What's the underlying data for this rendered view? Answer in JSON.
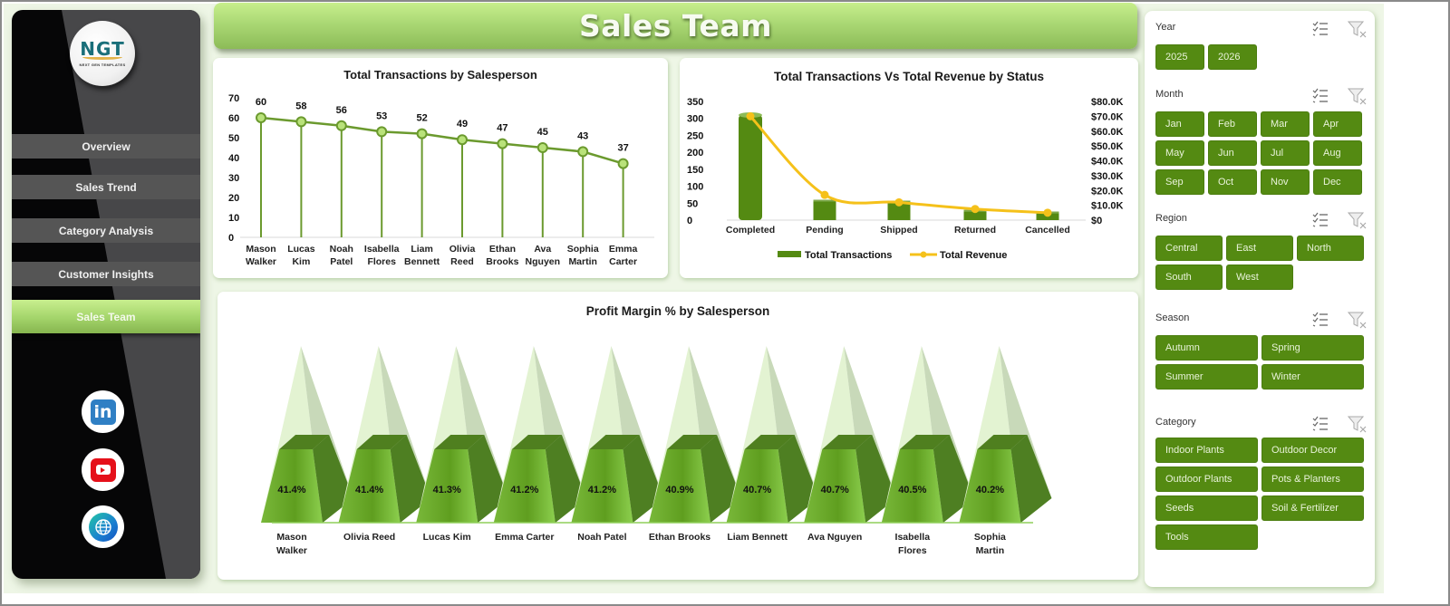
{
  "window": {
    "title": "Sales Team"
  },
  "sidebar": {
    "logo": {
      "text": "NGT",
      "subtitle": "NEXT GEN TEMPLATES"
    },
    "nav": [
      {
        "label": "Overview",
        "active": false
      },
      {
        "label": "Sales Trend",
        "active": false
      },
      {
        "label": "Category Analysis",
        "active": false
      },
      {
        "label": "Customer Insights",
        "active": false
      },
      {
        "label": "Sales Team",
        "active": true
      }
    ],
    "social": [
      {
        "name": "linkedin",
        "glyph": "in"
      },
      {
        "name": "youtube"
      },
      {
        "name": "website"
      }
    ]
  },
  "header": {
    "title": "Sales Team"
  },
  "charts": {
    "transactions": {
      "title": "Total Transactions by Salesperson"
    },
    "status": {
      "title": "Total Transactions Vs Total Revenue  by Status"
    },
    "profit": {
      "title": "Profit Margin % by Salesperson"
    }
  },
  "filters": {
    "year": {
      "title": "Year",
      "options": [
        "2025",
        "2026"
      ]
    },
    "month": {
      "title": "Month",
      "options": [
        "Jan",
        "Feb",
        "Mar",
        "Apr",
        "May",
        "Jun",
        "Jul",
        "Aug",
        "Sep",
        "Oct",
        "Nov",
        "Dec"
      ]
    },
    "region": {
      "title": "Region",
      "options": [
        "Central",
        "East",
        "North",
        "South",
        "West"
      ]
    },
    "season": {
      "title": "Season",
      "options": [
        "Autumn",
        "Spring",
        "Summer",
        "Winter"
      ]
    },
    "category": {
      "title": "Category",
      "options": [
        "Indoor Plants",
        "Outdoor Decor",
        "Outdoor Plants",
        "Pots & Planters",
        "Seeds",
        "Soil & Fertilizer",
        "Tools"
      ]
    }
  },
  "colors": {
    "accent_green": "#548a12",
    "line_green": "#6b9a2e",
    "marker_fill": "#b9e27a",
    "revenue_yellow": "#f5c11a",
    "sidebar_dark": "#060607",
    "nav_gray": "#555555",
    "background": "#eef6e6"
  },
  "chart_data": [
    {
      "type": "line",
      "title": "Total Transactions by Salesperson",
      "categories": [
        "Mason Walker",
        "Lucas Kim",
        "Noah Patel",
        "Isabella Flores",
        "Liam Bennett",
        "Olivia Reed",
        "Ethan Brooks",
        "Ava Nguyen",
        "Sophia Martin",
        "Emma Carter"
      ],
      "values": [
        60,
        58,
        56,
        53,
        52,
        49,
        47,
        45,
        43,
        37
      ],
      "xlabel": "",
      "ylabel": "",
      "ylim": [
        0,
        70
      ],
      "yticks": [
        0,
        10,
        20,
        30,
        40,
        50,
        60,
        70
      ],
      "data_labels": true,
      "drop_lines": true,
      "grid": false,
      "legend": "none"
    },
    {
      "type": "bar",
      "title": "Total Transactions Vs Total Revenue  by Status",
      "categories": [
        "Completed",
        "Pending",
        "Shipped",
        "Returned",
        "Cancelled"
      ],
      "series": [
        {
          "name": "Total Transactions",
          "type": "bar",
          "axis": "left",
          "values": [
            310,
            60,
            57,
            30,
            25
          ]
        },
        {
          "name": "Total Revenue",
          "type": "line",
          "axis": "right",
          "values": [
            70000,
            17000,
            12000,
            7500,
            5000
          ]
        }
      ],
      "ylim": [
        0,
        350
      ],
      "yticks": [
        0,
        50,
        100,
        150,
        200,
        250,
        300,
        350
      ],
      "y2lim": [
        0,
        80000
      ],
      "y2ticks": [
        "$0",
        "$10.0K",
        "$20.0K",
        "$30.0K",
        "$40.0K",
        "$50.0K",
        "$60.0K",
        "$70.0K",
        "$80.0K"
      ],
      "legend": "bottom",
      "grid": false
    },
    {
      "type": "bar",
      "subtype": "3d-pyramid",
      "title": "Profit Margin % by Salesperson",
      "categories": [
        "Mason Walker",
        "Olivia Reed",
        "Lucas Kim",
        "Emma Carter",
        "Noah Patel",
        "Ethan Brooks",
        "Liam Bennett",
        "Ava Nguyen",
        "Isabella Flores",
        "Sophia Martin"
      ],
      "values": [
        41.4,
        41.4,
        41.3,
        41.2,
        41.2,
        40.9,
        40.7,
        40.7,
        40.5,
        40.2
      ],
      "value_labels": [
        "41.4%",
        "41.4%",
        "41.3%",
        "41.2%",
        "41.2%",
        "40.9%",
        "40.7%",
        "40.7%",
        "40.5%",
        "40.2%"
      ],
      "ylim": [
        0,
        100
      ],
      "data_labels": true,
      "legend": "none"
    }
  ]
}
